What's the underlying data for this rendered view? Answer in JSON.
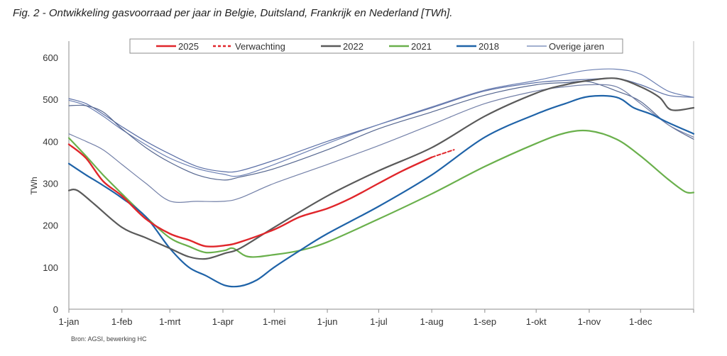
{
  "figure": {
    "title": "Fig. 2 - Ontwikkeling gasvoorraad per jaar in Belgie, Duitsland, Frankrijk en Nederland [TWh].",
    "source": "Bron: AGSI, bewerking HC"
  },
  "chart_data": {
    "type": "line",
    "title": "Ontwikkeling gasvoorraad per jaar in Belgie, Duitsland, Frankrijk en Nederland [TWh]",
    "xlabel": "",
    "ylabel": "TWh",
    "xlim": [
      0,
      365
    ],
    "ylim": [
      0,
      650
    ],
    "x_unit": "day of year",
    "grid": false,
    "legend_position": "top-center",
    "x_ticks": [
      {
        "day": 0,
        "label": "1-jan"
      },
      {
        "day": 31,
        "label": "1-feb"
      },
      {
        "day": 59,
        "label": "1-mrt"
      },
      {
        "day": 90,
        "label": "1-apr"
      },
      {
        "day": 120,
        "label": "1-mei"
      },
      {
        "day": 151,
        "label": "1-jun"
      },
      {
        "day": 181,
        "label": "1-jul"
      },
      {
        "day": 212,
        "label": "1-aug"
      },
      {
        "day": 243,
        "label": "1-sep"
      },
      {
        "day": 273,
        "label": "1-okt"
      },
      {
        "day": 304,
        "label": "1-nov"
      },
      {
        "day": 334,
        "label": "1-dec"
      },
      {
        "day": 365,
        "label": ""
      }
    ],
    "y_ticks": [
      0,
      100,
      200,
      300,
      400,
      500,
      600
    ],
    "series": [
      {
        "name": "Overige jaren",
        "key": "other1",
        "color": "#5b6fa6",
        "width": 1.2,
        "dash": "",
        "in_legend": true,
        "x": [
          0,
          10,
          20,
          31,
          45,
          59,
          75,
          90,
          100,
          120,
          151,
          181,
          212,
          243,
          273,
          290,
          304,
          320,
          334,
          350,
          365
        ],
        "y": [
          502,
          490,
          465,
          435,
          400,
          370,
          340,
          328,
          330,
          355,
          400,
          440,
          480,
          520,
          540,
          545,
          548,
          550,
          535,
          510,
          505
        ]
      },
      {
        "name": "Overige jaren",
        "key": "other2",
        "color": "#6b7fb2",
        "width": 1.2,
        "dash": "",
        "in_legend": false,
        "x": [
          0,
          10,
          20,
          31,
          45,
          59,
          75,
          90,
          100,
          120,
          151,
          181,
          212,
          243,
          273,
          290,
          304,
          320,
          334,
          350,
          365
        ],
        "y": [
          498,
          485,
          460,
          428,
          392,
          360,
          335,
          322,
          318,
          345,
          395,
          440,
          482,
          522,
          545,
          560,
          570,
          572,
          560,
          520,
          505
        ]
      },
      {
        "name": "Overige jaren",
        "key": "other3",
        "color": "#55668f",
        "width": 1.2,
        "dash": "",
        "in_legend": false,
        "x": [
          0,
          10,
          20,
          31,
          45,
          59,
          75,
          90,
          100,
          120,
          151,
          181,
          212,
          243,
          273,
          290,
          304,
          320,
          334,
          350,
          365
        ],
        "y": [
          485,
          485,
          470,
          430,
          385,
          350,
          320,
          308,
          315,
          335,
          380,
          430,
          470,
          510,
          535,
          540,
          542,
          520,
          495,
          440,
          405
        ]
      },
      {
        "name": "Overige jaren",
        "key": "other4",
        "color": "#7380a8",
        "width": 1.2,
        "dash": "",
        "in_legend": false,
        "x": [
          0,
          10,
          20,
          31,
          45,
          59,
          75,
          90,
          100,
          120,
          151,
          181,
          212,
          243,
          273,
          290,
          304,
          320,
          334,
          350,
          365
        ],
        "y": [
          418,
          400,
          380,
          345,
          300,
          258,
          257,
          257,
          265,
          300,
          345,
          390,
          440,
          490,
          520,
          530,
          535,
          530,
          490,
          440,
          410
        ]
      },
      {
        "name": "2021",
        "key": "y2021",
        "color": "#6ab04c",
        "width": 2.2,
        "dash": "",
        "in_legend": true,
        "x": [
          0,
          10,
          20,
          31,
          45,
          59,
          70,
          80,
          91,
          96,
          105,
          120,
          135,
          151,
          181,
          212,
          243,
          273,
          290,
          304,
          320,
          334,
          350,
          360,
          365
        ],
        "y": [
          408,
          365,
          320,
          275,
          220,
          170,
          150,
          135,
          140,
          145,
          125,
          130,
          140,
          160,
          215,
          275,
          340,
          395,
          420,
          425,
          405,
          365,
          310,
          280,
          278
        ]
      },
      {
        "name": "2018",
        "key": "y2018",
        "color": "#1f63a8",
        "width": 2.2,
        "dash": "",
        "in_legend": true,
        "x": [
          0,
          10,
          20,
          31,
          45,
          59,
          70,
          80,
          91,
          100,
          110,
          120,
          135,
          151,
          181,
          212,
          243,
          273,
          290,
          304,
          320,
          330,
          340,
          350,
          365
        ],
        "y": [
          347,
          320,
          295,
          265,
          220,
          145,
          100,
          80,
          57,
          55,
          70,
          100,
          140,
          180,
          245,
          320,
          410,
          465,
          490,
          507,
          505,
          480,
          465,
          445,
          418
        ]
      },
      {
        "name": "2022",
        "key": "y2022",
        "color": "#5a5a5a",
        "width": 2.2,
        "dash": "",
        "in_legend": true,
        "x": [
          0,
          5,
          15,
          31,
          45,
          59,
          70,
          80,
          91,
          100,
          120,
          151,
          181,
          212,
          243,
          273,
          290,
          304,
          320,
          334,
          345,
          352,
          365
        ],
        "y": [
          283,
          283,
          250,
          195,
          170,
          145,
          125,
          120,
          133,
          145,
          195,
          270,
          330,
          385,
          460,
          515,
          535,
          545,
          550,
          530,
          505,
          475,
          480
        ]
      },
      {
        "name": "2025",
        "key": "y2025",
        "color": "#e0262b",
        "width": 2.4,
        "dash": "",
        "in_legend": true,
        "x": [
          0,
          10,
          20,
          31,
          45,
          59,
          70,
          80,
          91,
          100,
          120,
          135,
          151,
          165,
          181,
          195,
          212
        ],
        "y": [
          393,
          360,
          305,
          270,
          215,
          180,
          165,
          150,
          152,
          160,
          190,
          220,
          240,
          265,
          300,
          330,
          362
        ]
      },
      {
        "name": "Verwachting",
        "key": "forecast",
        "color": "#e0262b",
        "width": 2,
        "dash": "5,3",
        "in_legend": true,
        "x": [
          212,
          225
        ],
        "y": [
          362,
          380
        ]
      }
    ],
    "legend": [
      {
        "label": "2025",
        "color": "#e0262b",
        "dash": ""
      },
      {
        "label": "Verwachting",
        "color": "#e0262b",
        "dash": "5,3"
      },
      {
        "label": "2022",
        "color": "#5a5a5a",
        "dash": ""
      },
      {
        "label": "2021",
        "color": "#6ab04c",
        "dash": ""
      },
      {
        "label": "2018",
        "color": "#1f63a8",
        "dash": ""
      },
      {
        "label": "Overige jaren",
        "color": "#6b7fb2",
        "dash": "",
        "thin": true
      }
    ]
  }
}
